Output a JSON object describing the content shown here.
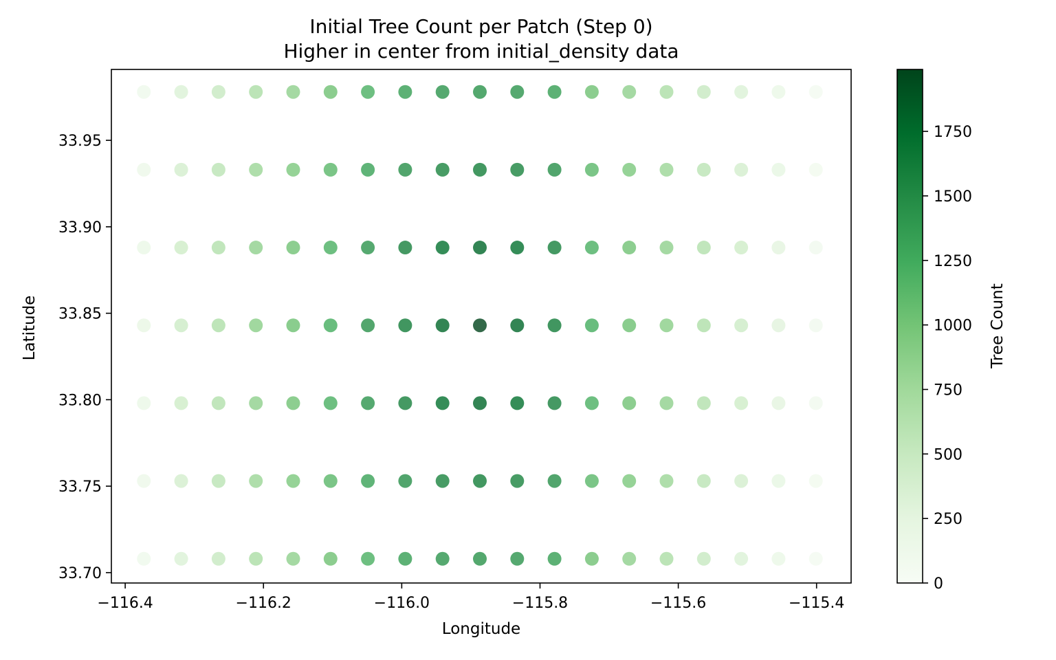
{
  "chart_data": {
    "type": "scatter",
    "title": "Initial Tree Count per Patch (Step 0)",
    "subtitle": "Higher in center from initial_density data",
    "xlabel": "Longitude",
    "ylabel": "Latitude",
    "xlim": [
      -116.42,
      -115.35
    ],
    "ylim": [
      33.694,
      33.991
    ],
    "xticks": [
      -116.4,
      -116.2,
      -116.0,
      -115.8,
      -115.6,
      -115.4
    ],
    "xtick_labels": [
      "−116.4",
      "−116.2",
      "−116.0",
      "−115.8",
      "−115.6",
      "−115.4"
    ],
    "yticks": [
      33.7,
      33.75,
      33.8,
      33.85,
      33.9,
      33.95
    ],
    "ytick_labels": [
      "33.70",
      "33.75",
      "33.80",
      "33.85",
      "33.90",
      "33.95"
    ],
    "grid": false,
    "x": [
      -116.373,
      -116.319,
      -116.265,
      -116.211,
      -116.157,
      -116.103,
      -116.049,
      -115.995,
      -115.941,
      -115.887,
      -115.833,
      -115.779,
      -115.725,
      -115.671,
      -115.617,
      -115.563,
      -115.509,
      -115.455,
      -115.401
    ],
    "y": [
      33.978,
      33.933,
      33.888,
      33.843,
      33.798,
      33.753,
      33.708
    ],
    "values": [
      [
        120,
        330,
        500,
        680,
        850,
        1020,
        1200,
        1350,
        1420,
        1440,
        1420,
        1350,
        1020,
        850,
        680,
        500,
        330,
        180,
        60
      ],
      [
        150,
        400,
        580,
        780,
        950,
        1120,
        1320,
        1460,
        1560,
        1600,
        1560,
        1460,
        1120,
        950,
        780,
        580,
        400,
        230,
        80
      ],
      [
        180,
        440,
        640,
        850,
        1010,
        1200,
        1420,
        1580,
        1720,
        1780,
        1720,
        1580,
        1200,
        1010,
        850,
        640,
        440,
        260,
        90
      ],
      [
        200,
        460,
        660,
        880,
        1030,
        1230,
        1450,
        1620,
        1780,
        1990,
        1780,
        1620,
        1230,
        1030,
        880,
        660,
        460,
        280,
        100
      ],
      [
        180,
        440,
        640,
        850,
        1010,
        1200,
        1420,
        1580,
        1720,
        1780,
        1720,
        1580,
        1200,
        1010,
        850,
        640,
        440,
        260,
        90
      ],
      [
        150,
        400,
        580,
        780,
        950,
        1120,
        1320,
        1460,
        1560,
        1600,
        1560,
        1460,
        1120,
        950,
        780,
        580,
        400,
        230,
        80
      ],
      [
        120,
        330,
        500,
        680,
        850,
        1020,
        1200,
        1350,
        1420,
        1440,
        1420,
        1350,
        1020,
        850,
        680,
        500,
        330,
        180,
        60
      ]
    ],
    "colorbar": {
      "label": "Tree Count",
      "range": [
        0,
        1990
      ],
      "ticks": [
        0,
        250,
        500,
        750,
        1000,
        1250,
        1500,
        1750
      ],
      "tick_labels": [
        "0",
        "250",
        "500",
        "750",
        "1000",
        "1250",
        "1500",
        "1750"
      ],
      "colormap": [
        "#f7fcf5",
        "#e5f5e0",
        "#c7e9c0",
        "#a1d99b",
        "#74c476",
        "#41ab5d",
        "#238b45",
        "#006d2c",
        "#00441b"
      ]
    },
    "marker_alpha": 0.8
  }
}
